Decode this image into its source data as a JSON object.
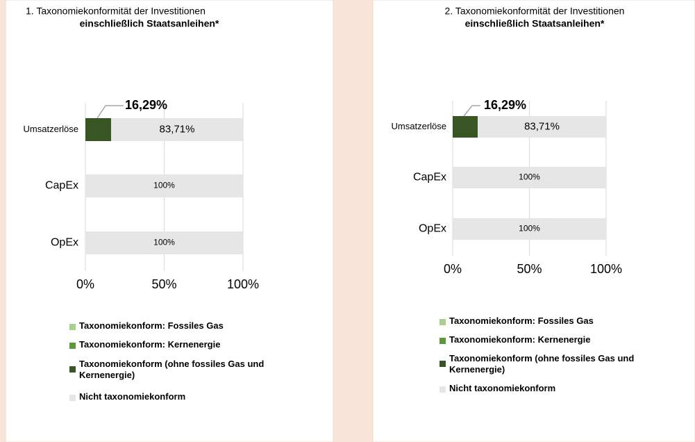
{
  "chart_data": [
    {
      "type": "stacked_bar_horizontal",
      "title": "1. Taxonomiekonformität der Investitionen",
      "subtitle": "einschließlich Staatsanleihen*",
      "categories": [
        "Umsatzerlöse",
        "CapEx",
        "OpEx"
      ],
      "series": [
        {
          "name": "Taxonomiekonform: Fossiles Gas",
          "color": "#a9d18e",
          "values": [
            0,
            0,
            0
          ]
        },
        {
          "name": "Taxonomiekonform: Kernenergie",
          "color": "#5b9a3c",
          "values": [
            0,
            0,
            0
          ]
        },
        {
          "name": "Taxonomiekonform (ohne fossiles Gas und Kernenergie)",
          "color": "#375623",
          "values": [
            16.29,
            0,
            0
          ],
          "value_labels": [
            "16,29%",
            null,
            null
          ]
        },
        {
          "name": "Nicht taxonomiekonform",
          "color": "#e7e6e6",
          "values": [
            83.71,
            100,
            100
          ],
          "value_labels": [
            "83,71%",
            "100%",
            "100%"
          ]
        }
      ],
      "xlim": [
        0,
        100
      ],
      "xticks": [
        {
          "value": 0,
          "label": "0%"
        },
        {
          "value": 50,
          "label": "50%"
        },
        {
          "value": 100,
          "label": "100%"
        }
      ],
      "grid": true,
      "legend": "bottom"
    },
    {
      "type": "stacked_bar_horizontal",
      "title": "2. Taxonomiekonformität der Investitionen",
      "subtitle": "einschließlich Staatsanleihen*",
      "categories": [
        "Umsatzerlöse",
        "CapEx",
        "OpEx"
      ],
      "series": [
        {
          "name": "Taxonomiekonform: Fossiles Gas",
          "color": "#a9d18e",
          "values": [
            0,
            0,
            0
          ]
        },
        {
          "name": "Taxonomiekonform: Kernenergie",
          "color": "#5b9a3c",
          "values": [
            0,
            0,
            0
          ]
        },
        {
          "name": "Taxonomiekonform (ohne fossiles Gas und Kernenergie)",
          "color": "#375623",
          "values": [
            16.29,
            0,
            0
          ],
          "value_labels": [
            "16,29%",
            null,
            null
          ]
        },
        {
          "name": "Nicht taxonomiekonform",
          "color": "#e7e6e6",
          "values": [
            83.71,
            100,
            100
          ],
          "value_labels": [
            "83,71%",
            "100%",
            "100%"
          ]
        }
      ],
      "xlim": [
        0,
        100
      ],
      "xticks": [
        {
          "value": 0,
          "label": "0%"
        },
        {
          "value": 50,
          "label": "50%"
        },
        {
          "value": 100,
          "label": "100%"
        }
      ],
      "grid": true,
      "legend": "bottom"
    }
  ]
}
